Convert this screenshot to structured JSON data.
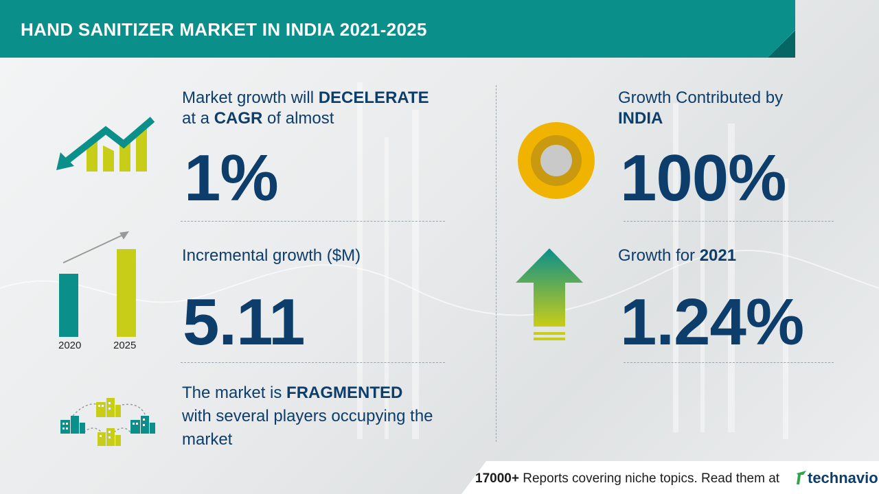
{
  "header": {
    "title": "HAND SANITIZER MARKET IN INDIA 2021-2025"
  },
  "cagr": {
    "line1_pre": "Market growth will ",
    "line1_bold": "DECELERATE",
    "line2_pre": "at a ",
    "line2_bold": "CAGR",
    "line2_post": " of almost",
    "value": "1%"
  },
  "incremental": {
    "label": "Incremental growth ($M)",
    "value": "5.11",
    "bar_years": [
      "2020",
      "2025"
    ]
  },
  "fragmented": {
    "pre": "The market is ",
    "bold": "FRAGMENTED",
    "line2": "with several players occupying the",
    "line3": "market"
  },
  "contribution": {
    "line1": "Growth Contributed by",
    "bold": "INDIA",
    "value": "100%"
  },
  "growth_year": {
    "pre": "Growth for ",
    "bold": "2021",
    "value": "1.24%"
  },
  "footer": {
    "count": "17000+",
    "text": " Reports covering niche topics. Read them at",
    "logo": "technavio"
  },
  "colors": {
    "teal": "#0a8f8b",
    "navy": "#0d3d6b",
    "lime": "#c8cd17",
    "gold": "#f0b400"
  }
}
